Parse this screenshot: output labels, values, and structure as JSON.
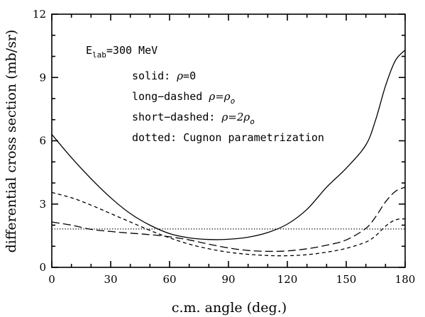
{
  "chart_data": {
    "type": "line",
    "title": "",
    "xlabel": "c.m. angle (deg.)",
    "ylabel": "differential cross section (mb/sr)",
    "xlim": [
      0,
      180
    ],
    "ylim": [
      0,
      12
    ],
    "xticks": [
      0,
      30,
      60,
      90,
      120,
      150,
      180
    ],
    "yticks": [
      0,
      3,
      6,
      9,
      12
    ],
    "grid": false,
    "legend_position": "top-left (inside)",
    "annotation": {
      "energy_label": "E",
      "energy_subscript": "lab",
      "energy_value": "=300 MeV",
      "lines": [
        {
          "prefix": "solid: ",
          "rho": "ρ",
          "middle": "=0",
          "tail": ""
        },
        {
          "prefix": "long−dashed ",
          "rho": "ρ",
          "middle": "=ρ",
          "tail": "o"
        },
        {
          "prefix": "short−dashed: ",
          "rho": "ρ",
          "middle": "=2ρ",
          "tail": "o"
        },
        {
          "prefix": "dotted: Cugnon parametrization",
          "rho": "",
          "middle": "",
          "tail": ""
        }
      ]
    },
    "series": [
      {
        "style": "solid",
        "x": [
          0,
          10,
          20,
          30,
          40,
          50,
          60,
          70,
          80,
          90,
          100,
          110,
          120,
          130,
          140,
          150,
          160,
          165,
          170,
          175,
          180
        ],
        "y": [
          6.3,
          5.2,
          4.2,
          3.3,
          2.55,
          2.0,
          1.6,
          1.4,
          1.32,
          1.33,
          1.43,
          1.65,
          2.05,
          2.75,
          3.8,
          4.7,
          5.8,
          7.0,
          8.6,
          9.8,
          10.3
        ]
      },
      {
        "style": "long-dashed",
        "x": [
          0,
          10,
          20,
          30,
          40,
          50,
          60,
          70,
          80,
          90,
          100,
          110,
          120,
          130,
          140,
          150,
          160,
          165,
          170,
          175,
          180
        ],
        "y": [
          2.15,
          2.0,
          1.8,
          1.7,
          1.62,
          1.55,
          1.45,
          1.3,
          1.1,
          0.92,
          0.8,
          0.76,
          0.78,
          0.88,
          1.05,
          1.3,
          1.85,
          2.4,
          3.1,
          3.6,
          3.8
        ]
      },
      {
        "style": "short-dashed",
        "x": [
          0,
          10,
          20,
          30,
          40,
          50,
          60,
          70,
          80,
          90,
          100,
          110,
          120,
          130,
          140,
          150,
          160,
          165,
          170,
          175,
          180
        ],
        "y": [
          3.55,
          3.3,
          2.95,
          2.55,
          2.15,
          1.75,
          1.4,
          1.1,
          0.88,
          0.72,
          0.62,
          0.56,
          0.55,
          0.6,
          0.72,
          0.9,
          1.2,
          1.5,
          1.95,
          2.25,
          2.3
        ]
      },
      {
        "style": "dotted",
        "x": [
          0,
          180
        ],
        "y": [
          1.82,
          1.82
        ]
      }
    ]
  }
}
